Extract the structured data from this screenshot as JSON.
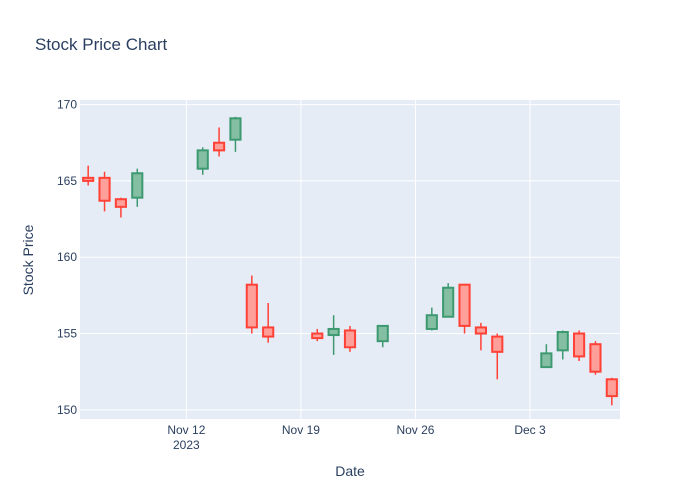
{
  "chart_data": {
    "type": "candlestick",
    "title": "Stock Price Chart",
    "xlabel": "Date",
    "ylabel": "Stock Price",
    "ylim": [
      149.4,
      170.3
    ],
    "y_ticks": [
      150,
      155,
      160,
      165,
      170
    ],
    "x_range": [
      "2023-11-06",
      "2023-12-08"
    ],
    "x_ticks": [
      {
        "date": "2023-11-12",
        "label": "Nov 12",
        "sublabel": "2023"
      },
      {
        "date": "2023-11-19",
        "label": "Nov 19",
        "sublabel": ""
      },
      {
        "date": "2023-11-26",
        "label": "Nov 26",
        "sublabel": ""
      },
      {
        "date": "2023-12-03",
        "label": "Dec 3",
        "sublabel": ""
      }
    ],
    "grid": true,
    "colors": {
      "increasing": "#3d9970",
      "increasing_fill": "#84bfa3",
      "decreasing": "#ff4136",
      "decreasing_fill": "#ff9f9a",
      "plot_bg": "#e5ecf6",
      "grid": "#ffffff",
      "text": "#2a3f5f"
    },
    "candles": [
      {
        "date": "2023-11-06",
        "open": 165.2,
        "high": 166.0,
        "low": 164.7,
        "close": 165.0
      },
      {
        "date": "2023-11-07",
        "open": 165.2,
        "high": 165.6,
        "low": 163.0,
        "close": 163.7
      },
      {
        "date": "2023-11-08",
        "open": 163.8,
        "high": 163.9,
        "low": 162.6,
        "close": 163.3
      },
      {
        "date": "2023-11-09",
        "open": 163.9,
        "high": 165.8,
        "low": 163.3,
        "close": 165.5
      },
      {
        "date": "2023-11-13",
        "open": 165.8,
        "high": 167.2,
        "low": 165.4,
        "close": 167.0
      },
      {
        "date": "2023-11-14",
        "open": 167.5,
        "high": 168.5,
        "low": 166.6,
        "close": 167.0
      },
      {
        "date": "2023-11-15",
        "open": 167.7,
        "high": 169.2,
        "low": 166.9,
        "close": 169.1
      },
      {
        "date": "2023-11-16",
        "open": 158.2,
        "high": 158.8,
        "low": 155.0,
        "close": 155.4
      },
      {
        "date": "2023-11-17",
        "open": 155.4,
        "high": 157.0,
        "low": 154.4,
        "close": 154.8
      },
      {
        "date": "2023-11-20",
        "open": 155.0,
        "high": 155.3,
        "low": 154.5,
        "close": 154.7
      },
      {
        "date": "2023-11-21",
        "open": 154.9,
        "high": 156.2,
        "low": 153.6,
        "close": 155.3
      },
      {
        "date": "2023-11-22",
        "open": 155.2,
        "high": 155.5,
        "low": 153.8,
        "close": 154.1
      },
      {
        "date": "2023-11-24",
        "open": 154.5,
        "high": 155.5,
        "low": 154.1,
        "close": 155.5
      },
      {
        "date": "2023-11-27",
        "open": 155.3,
        "high": 156.7,
        "low": 155.2,
        "close": 156.2
      },
      {
        "date": "2023-11-28",
        "open": 156.1,
        "high": 158.3,
        "low": 156.1,
        "close": 158.0
      },
      {
        "date": "2023-11-29",
        "open": 158.2,
        "high": 158.2,
        "low": 155.0,
        "close": 155.5
      },
      {
        "date": "2023-11-30",
        "open": 155.4,
        "high": 155.7,
        "low": 153.9,
        "close": 155.0
      },
      {
        "date": "2023-12-01",
        "open": 154.8,
        "high": 155.0,
        "low": 152.0,
        "close": 153.8
      },
      {
        "date": "2023-12-04",
        "open": 152.8,
        "high": 154.3,
        "low": 152.8,
        "close": 153.7
      },
      {
        "date": "2023-12-05",
        "open": 153.9,
        "high": 155.2,
        "low": 153.3,
        "close": 155.1
      },
      {
        "date": "2023-12-06",
        "open": 155.0,
        "high": 155.2,
        "low": 153.2,
        "close": 153.5
      },
      {
        "date": "2023-12-07",
        "open": 154.3,
        "high": 154.5,
        "low": 152.3,
        "close": 152.5
      },
      {
        "date": "2023-12-08",
        "open": 152.0,
        "high": 152.1,
        "low": 150.3,
        "close": 150.9
      }
    ]
  }
}
